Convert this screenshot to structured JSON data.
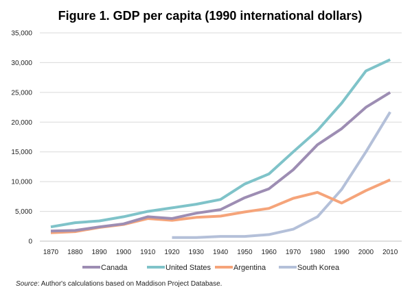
{
  "source": {
    "label": "Source",
    "text": ":  Author's calculations based on Maddison Project Database."
  },
  "chart_data": {
    "type": "line",
    "title": "Figure 1. GDP per capita (1990 international dollars)",
    "xlabel": "",
    "ylabel": "",
    "ylim": [
      0,
      35000
    ],
    "yticks": [
      0,
      5000,
      10000,
      15000,
      20000,
      25000,
      30000,
      35000
    ],
    "ytick_labels": [
      "0",
      "5,000",
      "10,000",
      "15,000",
      "20,000",
      "25,000",
      "30,000",
      "35,000"
    ],
    "x": [
      1870,
      1880,
      1890,
      1900,
      1910,
      1920,
      1930,
      1940,
      1950,
      1960,
      1970,
      1980,
      1990,
      2000,
      2010
    ],
    "xtick_labels": [
      "1870",
      "1880",
      "1890",
      "1900",
      "1910",
      "1920",
      "1930",
      "1940",
      "1950",
      "1960",
      "1970",
      "1980",
      "1990",
      "2000",
      "2010"
    ],
    "grid": "horizontal",
    "legend_position": "bottom",
    "series": [
      {
        "name": "Canada",
        "color": "#9d8db3",
        "values": [
          1700,
          1800,
          2400,
          2900,
          4100,
          3800,
          4700,
          5300,
          7300,
          8800,
          12000,
          16200,
          18900,
          22500,
          25000
        ]
      },
      {
        "name": "United States",
        "color": "#7fc3c9",
        "values": [
          2400,
          3100,
          3400,
          4100,
          5000,
          5600,
          6200,
          7000,
          9600,
          11300,
          15000,
          18600,
          23200,
          28600,
          30500
        ]
      },
      {
        "name": "Argentina",
        "color": "#f5a47a",
        "values": [
          1400,
          1600,
          2300,
          2800,
          3800,
          3500,
          4000,
          4200,
          4900,
          5500,
          7200,
          8200,
          6400,
          8500,
          10300
        ]
      },
      {
        "name": "South Korea",
        "color": "#b4c0d9",
        "values": [
          null,
          null,
          null,
          null,
          null,
          600,
          600,
          800,
          800,
          1100,
          2000,
          4100,
          8700,
          15000,
          21700
        ]
      }
    ]
  }
}
